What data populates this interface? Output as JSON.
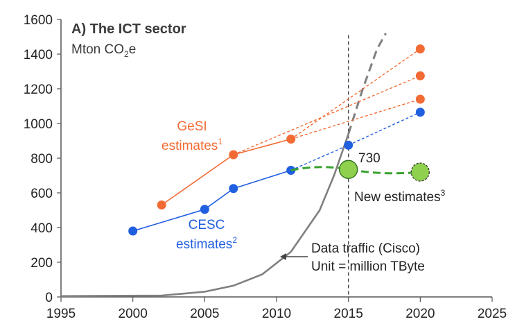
{
  "chart_data": {
    "type": "line",
    "title": "A) The ICT sector",
    "ylabel_main": "Mton CO",
    "ylabel_sub": "2",
    "ylabel_end": "e",
    "xlim": [
      1995,
      2025
    ],
    "ylim": [
      0,
      1600
    ],
    "x_ticks": [
      1995,
      2000,
      2005,
      2010,
      2015,
      2020,
      2025
    ],
    "y_ticks": [
      0,
      200,
      400,
      600,
      800,
      1000,
      1200,
      1400,
      1600
    ],
    "colors": {
      "gesi": "#f26b35",
      "cesc": "#1f5fe0",
      "new": "#37a22e",
      "new_fill": "#8fd14f",
      "traffic": "#7f7f7f",
      "axis": "#555555"
    },
    "series": [
      {
        "name": "GeSI estimates",
        "label_line1": "GeSI",
        "label_line2": "estimates",
        "sup": "1",
        "points": [
          [
            2002,
            530
          ],
          [
            2007,
            820
          ],
          [
            2011,
            910
          ]
        ],
        "projections": [
          {
            "from": [
              2011,
              910
            ],
            "to": [
              2020,
              1430
            ]
          },
          {
            "from": [
              2007,
              820
            ],
            "to": [
              2020,
              1275
            ]
          },
          {
            "from": [
              2011,
              910
            ],
            "to": [
              2020,
              1140
            ]
          }
        ]
      },
      {
        "name": "CESC estimates",
        "label_line1": "CESC",
        "label_line2": "estimates",
        "sup": "2",
        "points": [
          [
            2000,
            380
          ],
          [
            2005,
            505
          ],
          [
            2007,
            625
          ],
          [
            2011,
            730
          ]
        ],
        "projections": [
          {
            "from": [
              2011,
              730
            ],
            "to": [
              2015,
              875
            ]
          },
          {
            "from": [
              2015,
              875
            ],
            "to": [
              2020,
              1065
            ]
          }
        ],
        "extra_points": [
          [
            2015,
            875
          ],
          [
            2020,
            1065
          ]
        ]
      },
      {
        "name": "New estimates",
        "label": "New estimates",
        "sup": "3",
        "points": [
          [
            2011,
            730
          ],
          [
            2015,
            735
          ],
          [
            2020,
            720
          ]
        ],
        "value_label": "730"
      },
      {
        "name": "Data traffic (Cisco)",
        "label_line1": "Data traffic (Cisco)",
        "label_line2": "Unit = million TByte",
        "curve": [
          [
            1995,
            5
          ],
          [
            2002,
            8
          ],
          [
            2005,
            30
          ],
          [
            2007,
            65
          ],
          [
            2009,
            130
          ],
          [
            2011,
            260
          ],
          [
            2013,
            500
          ],
          [
            2014,
            700
          ],
          [
            2015,
            940
          ],
          [
            2016,
            1200
          ],
          [
            2017,
            1430
          ],
          [
            2017.6,
            1520
          ]
        ]
      }
    ],
    "vertical_marker_year": 2015
  }
}
